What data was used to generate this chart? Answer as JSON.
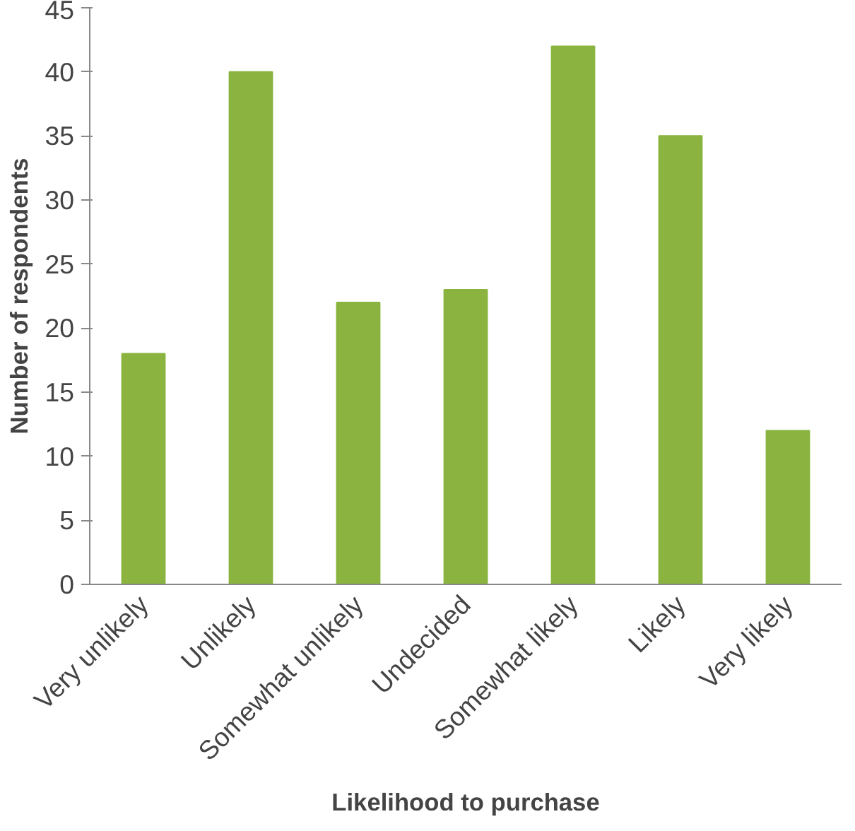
{
  "chart_data": {
    "type": "bar",
    "xlabel": "Likelihood to purchase",
    "ylabel": "Number of respondents",
    "categories": [
      "Very unlikely",
      "Unlikely",
      "Somewhat unlikely",
      "Undecided",
      "Somewhat likely",
      "Likely",
      "Very likely"
    ],
    "values": [
      18,
      40,
      22,
      23,
      42,
      35,
      12
    ],
    "color": "#8ab43f",
    "ylim": [
      0,
      45
    ],
    "yticks": [
      0,
      5,
      10,
      15,
      20,
      25,
      30,
      35,
      40,
      45
    ],
    "grid": false
  }
}
